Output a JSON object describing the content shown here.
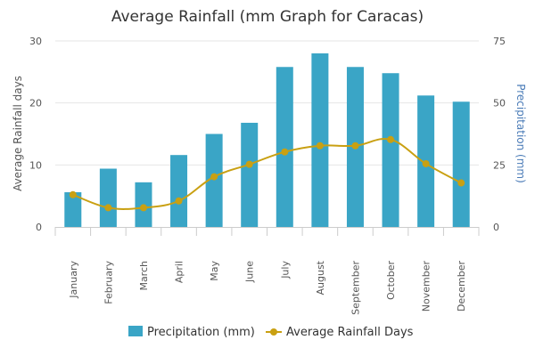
{
  "chart_data": {
    "type": "bar+line",
    "title": "Average Rainfall (mm Graph for Caracas)",
    "categories": [
      "January",
      "February",
      "March",
      "April",
      "May",
      "June",
      "July",
      "August",
      "September",
      "October",
      "November",
      "December"
    ],
    "series": [
      {
        "name": "Precipitation (mm)",
        "type": "bar",
        "axis": "right",
        "values": [
          14,
          23.5,
          18,
          29,
          37.5,
          42,
          64.5,
          70,
          64.5,
          62,
          53,
          50.5
        ],
        "color": "#3aa5c6"
      },
      {
        "name": "Average Rainfall Days",
        "type": "line",
        "axis": "left",
        "values": [
          5.2,
          3.1,
          3.1,
          4.2,
          8.1,
          10.1,
          12.1,
          13.1,
          13.1,
          14.1,
          10.2,
          7.1
        ],
        "color": "#c9a012"
      }
    ],
    "y_left": {
      "label": "Average Rainfall days",
      "min": 0,
      "max": 30,
      "ticks": [
        0,
        10,
        20,
        30
      ]
    },
    "y_right": {
      "label": "Precipitation (mm)",
      "min": 0,
      "max": 75,
      "ticks": [
        0,
        25,
        50,
        75
      ],
      "label_color": "#4a7bb7"
    },
    "grid": true,
    "legend_position": "bottom",
    "grid_color": "#e6e6e6",
    "axis_color": "#cccccc"
  }
}
